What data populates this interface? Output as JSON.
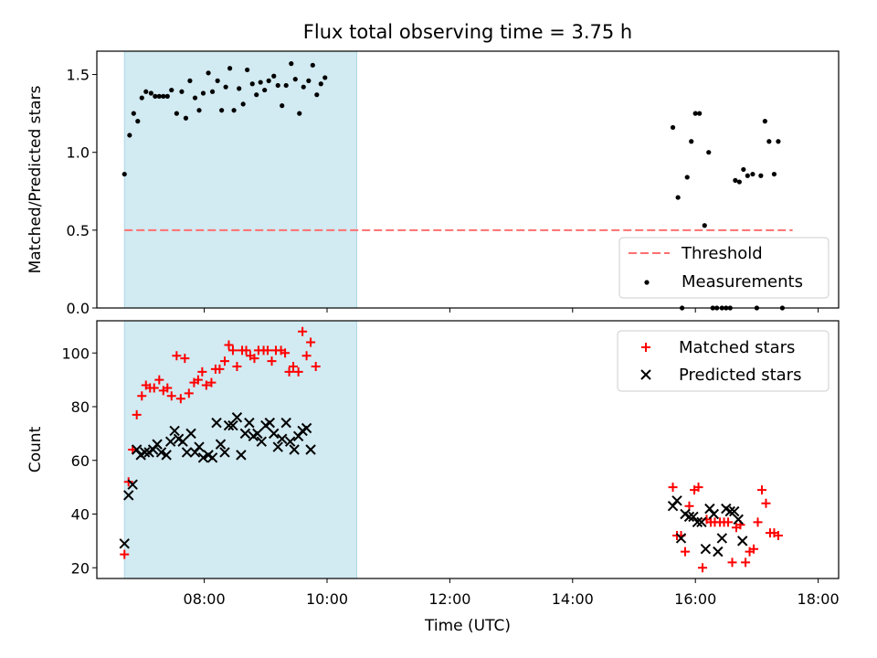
{
  "title": "Flux total observing time = 3.75 h",
  "colors": {
    "observing_window": "#add8e6",
    "threshold": "#ff6f6f",
    "measurements": "#000000",
    "matched": "#ff0000",
    "predicted": "#000000"
  },
  "chart_data": [
    {
      "type": "scatter",
      "ylabel": "Matched/Predicted stars",
      "xlabel": "",
      "xlim": [
        "06:15",
        "18:20"
      ],
      "ylim": [
        0,
        1.65
      ],
      "yticks": [
        "0.0",
        "0.5",
        "1.0",
        "1.5"
      ],
      "legend_position": "lower-right",
      "shaded_interval": [
        "06:42",
        "10:29"
      ],
      "threshold": {
        "name": "Threshold",
        "value": 0.5,
        "x": [
          "06:42",
          "17:35"
        ]
      },
      "series": [
        {
          "name": "Measurements",
          "points": [
            [
              "06:42",
              0.86
            ],
            [
              "06:47",
              1.11
            ],
            [
              "06:51",
              1.25
            ],
            [
              "06:55",
              1.2
            ],
            [
              "06:59",
              1.35
            ],
            [
              "07:03",
              1.39
            ],
            [
              "07:08",
              1.38
            ],
            [
              "07:12",
              1.36
            ],
            [
              "07:16",
              1.36
            ],
            [
              "07:20",
              1.36
            ],
            [
              "07:24",
              1.36
            ],
            [
              "07:28",
              1.4
            ],
            [
              "07:33",
              1.25
            ],
            [
              "07:38",
              1.39
            ],
            [
              "07:42",
              1.22
            ],
            [
              "07:46",
              1.46
            ],
            [
              "07:51",
              1.35
            ],
            [
              "07:55",
              1.27
            ],
            [
              "07:59",
              1.38
            ],
            [
              "08:04",
              1.51
            ],
            [
              "08:08",
              1.39
            ],
            [
              "08:13",
              1.46
            ],
            [
              "08:17",
              1.27
            ],
            [
              "08:21",
              1.42
            ],
            [
              "08:25",
              1.54
            ],
            [
              "08:29",
              1.27
            ],
            [
              "08:34",
              1.41
            ],
            [
              "08:38",
              1.31
            ],
            [
              "08:42",
              1.53
            ],
            [
              "08:47",
              1.44
            ],
            [
              "08:51",
              1.37
            ],
            [
              "08:55",
              1.45
            ],
            [
              "08:59",
              1.4
            ],
            [
              "09:03",
              1.46
            ],
            [
              "09:08",
              1.49
            ],
            [
              "09:12",
              1.43
            ],
            [
              "09:16",
              1.3
            ],
            [
              "09:20",
              1.43
            ],
            [
              "09:25",
              1.57
            ],
            [
              "09:29",
              1.47
            ],
            [
              "09:33",
              1.25
            ],
            [
              "09:37",
              1.42
            ],
            [
              "09:42",
              1.46
            ],
            [
              "09:46",
              1.56
            ],
            [
              "09:50",
              1.37
            ],
            [
              "09:54",
              1.44
            ],
            [
              "09:58",
              1.48
            ],
            [
              "15:38",
              1.16
            ],
            [
              "15:43",
              0.71
            ],
            [
              "15:47",
              0.0
            ],
            [
              "15:52",
              0.84
            ],
            [
              "15:56",
              1.07
            ],
            [
              "16:00",
              1.25
            ],
            [
              "16:04",
              1.25
            ],
            [
              "16:09",
              0.53
            ],
            [
              "16:13",
              1.0
            ],
            [
              "16:17",
              0.0
            ],
            [
              "16:21",
              0.0
            ],
            [
              "16:26",
              0.0
            ],
            [
              "16:30",
              0.0
            ],
            [
              "16:34",
              0.0
            ],
            [
              "16:39",
              0.82
            ],
            [
              "16:43",
              0.81
            ],
            [
              "16:47",
              0.89
            ],
            [
              "16:51",
              0.85
            ],
            [
              "16:56",
              0.86
            ],
            [
              "17:00",
              0.0
            ],
            [
              "17:04",
              0.85
            ],
            [
              "17:08",
              1.2
            ],
            [
              "17:12",
              1.07
            ],
            [
              "17:17",
              0.86
            ],
            [
              "17:21",
              1.07
            ],
            [
              "17:25",
              0.0
            ]
          ]
        }
      ]
    },
    {
      "type": "scatter",
      "ylabel": "Count",
      "xlabel": "Time (UTC)",
      "xlim": [
        "06:15",
        "18:20"
      ],
      "ylim": [
        16,
        112
      ],
      "yticks": [
        "20",
        "40",
        "60",
        "80",
        "100"
      ],
      "xticks": [
        "08:00",
        "10:00",
        "12:00",
        "14:00",
        "16:00",
        "18:00"
      ],
      "legend_position": "upper-right",
      "shaded_interval": [
        "06:42",
        "10:29"
      ],
      "series": [
        {
          "name": "Matched stars",
          "marker": "plus",
          "points": [
            [
              "06:42",
              25
            ],
            [
              "06:46",
              52
            ],
            [
              "06:50",
              64
            ],
            [
              "06:54",
              77
            ],
            [
              "06:59",
              84
            ],
            [
              "07:03",
              88
            ],
            [
              "07:07",
              87
            ],
            [
              "07:11",
              87
            ],
            [
              "07:16",
              90
            ],
            [
              "07:20",
              86
            ],
            [
              "07:24",
              87
            ],
            [
              "07:28",
              84
            ],
            [
              "07:33",
              99
            ],
            [
              "07:37",
              83
            ],
            [
              "07:41",
              98
            ],
            [
              "07:45",
              85
            ],
            [
              "07:50",
              89
            ],
            [
              "07:54",
              90
            ],
            [
              "07:58",
              93
            ],
            [
              "08:02",
              88
            ],
            [
              "08:07",
              89
            ],
            [
              "08:11",
              94
            ],
            [
              "08:15",
              94
            ],
            [
              "08:20",
              97
            ],
            [
              "08:24",
              103
            ],
            [
              "08:28",
              101
            ],
            [
              "08:32",
              95
            ],
            [
              "08:37",
              101
            ],
            [
              "08:41",
              101
            ],
            [
              "08:45",
              99
            ],
            [
              "08:49",
              98
            ],
            [
              "08:53",
              101
            ],
            [
              "08:58",
              101
            ],
            [
              "09:02",
              101
            ],
            [
              "09:06",
              97
            ],
            [
              "09:10",
              101
            ],
            [
              "09:15",
              101
            ],
            [
              "09:19",
              100
            ],
            [
              "09:23",
              93
            ],
            [
              "09:27",
              95
            ],
            [
              "09:32",
              93
            ],
            [
              "09:36",
              108
            ],
            [
              "09:40",
              99
            ],
            [
              "09:44",
              104
            ],
            [
              "09:49",
              95
            ],
            [
              "15:38",
              50
            ],
            [
              "15:42",
              32
            ],
            [
              "15:46",
              32
            ],
            [
              "15:50",
              26
            ],
            [
              "15:54",
              43
            ],
            [
              "15:59",
              49
            ],
            [
              "16:03",
              50
            ],
            [
              "16:07",
              20
            ],
            [
              "16:11",
              38
            ],
            [
              "16:15",
              37
            ],
            [
              "16:19",
              37
            ],
            [
              "16:24",
              37
            ],
            [
              "16:28",
              37
            ],
            [
              "16:32",
              37
            ],
            [
              "16:36",
              22
            ],
            [
              "16:40",
              35
            ],
            [
              "16:44",
              36
            ],
            [
              "16:49",
              22
            ],
            [
              "16:53",
              26
            ],
            [
              "16:57",
              27
            ],
            [
              "17:01",
              37
            ],
            [
              "17:05",
              49
            ],
            [
              "17:09",
              44
            ],
            [
              "17:13",
              33
            ],
            [
              "17:17",
              33
            ],
            [
              "17:21",
              32
            ]
          ]
        },
        {
          "name": "Predicted stars",
          "marker": "x",
          "points": [
            [
              "06:42",
              29
            ],
            [
              "06:46",
              47
            ],
            [
              "06:50",
              51
            ],
            [
              "06:54",
              64
            ],
            [
              "06:58",
              62
            ],
            [
              "07:02",
              63
            ],
            [
              "07:06",
              63
            ],
            [
              "07:10",
              64
            ],
            [
              "07:14",
              66
            ],
            [
              "07:18",
              63
            ],
            [
              "07:23",
              62
            ],
            [
              "07:27",
              67
            ],
            [
              "07:31",
              71
            ],
            [
              "07:35",
              68
            ],
            [
              "07:39",
              67
            ],
            [
              "07:43",
              63
            ],
            [
              "07:47",
              70
            ],
            [
              "07:51",
              63
            ],
            [
              "07:55",
              65
            ],
            [
              "07:59",
              61
            ],
            [
              "08:04",
              62
            ],
            [
              "08:08",
              61
            ],
            [
              "08:12",
              74
            ],
            [
              "08:16",
              66
            ],
            [
              "08:20",
              63
            ],
            [
              "08:24",
              73
            ],
            [
              "08:28",
              73
            ],
            [
              "08:32",
              76
            ],
            [
              "08:36",
              62
            ],
            [
              "08:40",
              70
            ],
            [
              "08:44",
              74
            ],
            [
              "08:48",
              69
            ],
            [
              "08:52",
              70
            ],
            [
              "08:56",
              67
            ],
            [
              "09:00",
              73
            ],
            [
              "09:04",
              74
            ],
            [
              "09:08",
              70
            ],
            [
              "09:12",
              65
            ],
            [
              "09:16",
              68
            ],
            [
              "09:20",
              74
            ],
            [
              "09:24",
              67
            ],
            [
              "09:28",
              64
            ],
            [
              "09:32",
              69
            ],
            [
              "09:36",
              71
            ],
            [
              "09:40",
              72
            ],
            [
              "09:44",
              64
            ],
            [
              "15:38",
              43
            ],
            [
              "15:42",
              45
            ],
            [
              "15:46",
              31
            ],
            [
              "15:50",
              40
            ],
            [
              "15:54",
              39
            ],
            [
              "15:58",
              39
            ],
            [
              "16:02",
              37
            ],
            [
              "16:06",
              37
            ],
            [
              "16:10",
              27
            ],
            [
              "16:14",
              42
            ],
            [
              "16:18",
              40
            ],
            [
              "16:22",
              26
            ],
            [
              "16:26",
              31
            ],
            [
              "16:30",
              42
            ],
            [
              "16:34",
              41
            ],
            [
              "16:38",
              41
            ],
            [
              "16:42",
              38
            ],
            [
              "16:46",
              30
            ]
          ]
        }
      ]
    }
  ]
}
